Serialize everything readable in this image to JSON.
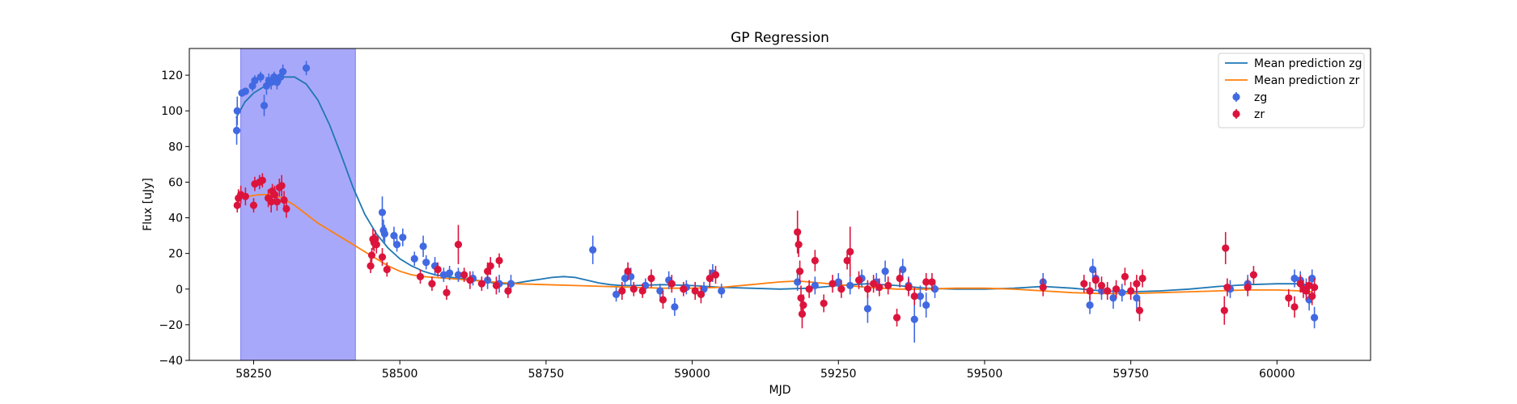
{
  "chart_data": {
    "type": "scatter",
    "title": "GP Regression",
    "xlabel": "MJD",
    "ylabel": "Flux [uJy]",
    "xlim": [
      58140,
      60160
    ],
    "ylim": [
      -40,
      135
    ],
    "xticks": [
      58250,
      58500,
      58750,
      59000,
      59250,
      59500,
      59750,
      60000
    ],
    "yticks": [
      -40,
      -20,
      0,
      20,
      40,
      60,
      80,
      100,
      120
    ],
    "legend_position": "top-right",
    "shaded_region": {
      "x": [
        58228,
        58424
      ],
      "color": "#a8a8fa"
    },
    "series": [
      {
        "name": "Mean prediction zg",
        "kind": "line",
        "color": "#1f77b4",
        "x": [
          58220,
          58235,
          58250,
          58265,
          58280,
          58300,
          58320,
          58340,
          58360,
          58380,
          58400,
          58420,
          58440,
          58460,
          58480,
          58500,
          58520,
          58540,
          58560,
          58580,
          58600,
          58620,
          58640,
          58660,
          58680,
          58700,
          58720,
          58740,
          58760,
          58780,
          58800,
          58820,
          58840,
          58860,
          58880,
          58900,
          58950,
          59000,
          59050,
          59100,
          59150,
          59200,
          59250,
          59300,
          59350,
          59400,
          59450,
          59500,
          59550,
          59600,
          59650,
          59700,
          59750,
          59800,
          59850,
          59900,
          59950,
          60000,
          60040,
          60060
        ],
        "y": [
          96,
          105,
          110,
          113,
          116,
          119,
          119,
          115,
          106,
          92,
          75,
          57,
          42,
          31,
          23,
          17,
          13,
          10,
          8,
          7,
          6,
          5.5,
          4.5,
          3.5,
          3,
          3.5,
          4.5,
          5.5,
          6.5,
          7,
          6.5,
          5,
          3.5,
          2.5,
          2,
          2,
          2.5,
          2,
          1,
          0.5,
          0,
          0.5,
          2,
          3,
          2,
          0.5,
          0,
          0,
          0.5,
          1.5,
          0.5,
          -1,
          -1.5,
          -1,
          0,
          1.5,
          2.5,
          3,
          3,
          2
        ]
      },
      {
        "name": "Mean prediction zr",
        "kind": "line",
        "color": "#ff7f0e",
        "x": [
          58220,
          58240,
          58260,
          58280,
          58300,
          58320,
          58340,
          58360,
          58380,
          58400,
          58420,
          58440,
          58460,
          58480,
          58500,
          58520,
          58540,
          58560,
          58580,
          58600,
          58620,
          58640,
          58660,
          58680,
          58700,
          58750,
          58800,
          58850,
          58900,
          58950,
          59000,
          59050,
          59100,
          59150,
          59180,
          59200,
          59250,
          59300,
          59350,
          59400,
          59450,
          59500,
          59550,
          59600,
          59650,
          59700,
          59750,
          59800,
          59850,
          59900,
          59950,
          60000,
          60040,
          60060
        ],
        "y": [
          51,
          52,
          53,
          53,
          51,
          47,
          42,
          37,
          33,
          29,
          25,
          21,
          17,
          13,
          10,
          8,
          7,
          6.5,
          6,
          5.5,
          5,
          4.5,
          4,
          3.5,
          3,
          2.5,
          2,
          1.5,
          1,
          0.5,
          0.5,
          1,
          2.5,
          4,
          4.5,
          4,
          2.5,
          1,
          0,
          0,
          0.5,
          0.5,
          0,
          -1,
          -2,
          -2.5,
          -2.5,
          -2,
          -1.5,
          -1,
          -0.5,
          -0.5,
          -1,
          -1.5
        ]
      },
      {
        "name": "zg",
        "kind": "errorbar",
        "color": "#4169e1",
        "points": [
          [
            58221,
            89,
            8
          ],
          [
            58222,
            100,
            8
          ],
          [
            58230,
            110,
            2
          ],
          [
            58236,
            111,
            2
          ],
          [
            58248,
            114,
            3
          ],
          [
            58252,
            117,
            3
          ],
          [
            58262,
            119,
            3
          ],
          [
            58268,
            103,
            6
          ],
          [
            58272,
            114,
            5
          ],
          [
            58276,
            117,
            4
          ],
          [
            58280,
            116,
            4
          ],
          [
            58285,
            119,
            3
          ],
          [
            58290,
            116,
            4
          ],
          [
            58296,
            119,
            3
          ],
          [
            58300,
            122,
            4
          ],
          [
            58340,
            124,
            4
          ],
          [
            58470,
            43,
            9
          ],
          [
            58472,
            33,
            6
          ],
          [
            58474,
            31,
            5
          ],
          [
            58490,
            30,
            5
          ],
          [
            58495,
            25,
            4
          ],
          [
            58505,
            29,
            5
          ],
          [
            58525,
            17,
            4
          ],
          [
            58540,
            24,
            6
          ],
          [
            58545,
            15,
            4
          ],
          [
            58560,
            13,
            5
          ],
          [
            58575,
            8,
            4
          ],
          [
            58585,
            9,
            4
          ],
          [
            58600,
            8,
            4
          ],
          [
            58625,
            6,
            4
          ],
          [
            58650,
            5,
            5
          ],
          [
            58670,
            3,
            5
          ],
          [
            58690,
            3,
            5
          ],
          [
            58830,
            22,
            8
          ],
          [
            58870,
            -3,
            4
          ],
          [
            58885,
            6,
            4
          ],
          [
            58895,
            7,
            5
          ],
          [
            58920,
            2,
            4
          ],
          [
            58945,
            -1,
            4
          ],
          [
            58960,
            5,
            5
          ],
          [
            58970,
            -10,
            5
          ],
          [
            58990,
            1,
            4
          ],
          [
            59020,
            0,
            4
          ],
          [
            59035,
            9,
            5
          ],
          [
            59050,
            -1,
            4
          ],
          [
            59180,
            4,
            5
          ],
          [
            59210,
            2,
            5
          ],
          [
            59250,
            4,
            5
          ],
          [
            59270,
            2,
            5
          ],
          [
            59290,
            6,
            5
          ],
          [
            59300,
            -11,
            8
          ],
          [
            59315,
            4,
            5
          ],
          [
            59330,
            10,
            6
          ],
          [
            59360,
            11,
            6
          ],
          [
            59370,
            2,
            5
          ],
          [
            59380,
            -17,
            13
          ],
          [
            59390,
            -4,
            6
          ],
          [
            59400,
            -9,
            7
          ],
          [
            59415,
            0,
            5
          ],
          [
            59600,
            4,
            5
          ],
          [
            59680,
            -9,
            5
          ],
          [
            59685,
            11,
            6
          ],
          [
            59690,
            6,
            5
          ],
          [
            59700,
            -1,
            5
          ],
          [
            59720,
            -5,
            6
          ],
          [
            59735,
            -2,
            5
          ],
          [
            59760,
            -5,
            6
          ],
          [
            59920,
            0,
            5
          ],
          [
            59950,
            3,
            5
          ],
          [
            60030,
            6,
            5
          ],
          [
            60040,
            5,
            5
          ],
          [
            60050,
            1,
            5
          ],
          [
            60055,
            -6,
            6
          ],
          [
            60060,
            6,
            5
          ],
          [
            60064,
            -16,
            6
          ]
        ]
      },
      {
        "name": "zr",
        "kind": "errorbar",
        "color": "#dc143c",
        "points": [
          [
            58222,
            47,
            4
          ],
          [
            58224,
            51,
            5
          ],
          [
            58228,
            53,
            5
          ],
          [
            58236,
            52,
            5
          ],
          [
            58250,
            47,
            4
          ],
          [
            58252,
            59,
            4
          ],
          [
            58260,
            60,
            4
          ],
          [
            58265,
            61,
            4
          ],
          [
            58275,
            51,
            5
          ],
          [
            58280,
            49,
            6
          ],
          [
            58282,
            55,
            4
          ],
          [
            58286,
            53,
            5
          ],
          [
            58290,
            49,
            5
          ],
          [
            58294,
            57,
            5
          ],
          [
            58298,
            58,
            6
          ],
          [
            58302,
            50,
            5
          ],
          [
            58306,
            45,
            5
          ],
          [
            58450,
            13,
            4
          ],
          [
            58452,
            19,
            4
          ],
          [
            58454,
            28,
            6
          ],
          [
            58456,
            26,
            5
          ],
          [
            58458,
            28,
            5
          ],
          [
            58460,
            25,
            5
          ],
          [
            58470,
            18,
            5
          ],
          [
            58478,
            11,
            4
          ],
          [
            58535,
            7,
            4
          ],
          [
            58555,
            3,
            4
          ],
          [
            58565,
            11,
            4
          ],
          [
            58580,
            -2,
            4
          ],
          [
            58600,
            25,
            11
          ],
          [
            58610,
            8,
            4
          ],
          [
            58620,
            5,
            5
          ],
          [
            58640,
            3,
            4
          ],
          [
            58650,
            10,
            5
          ],
          [
            58655,
            13,
            5
          ],
          [
            58665,
            2,
            5
          ],
          [
            58670,
            16,
            4
          ],
          [
            58685,
            -1,
            4
          ],
          [
            58880,
            -1,
            5
          ],
          [
            58890,
            10,
            5
          ],
          [
            58900,
            0,
            4
          ],
          [
            58915,
            -1,
            4
          ],
          [
            58930,
            6,
            5
          ],
          [
            58950,
            -6,
            5
          ],
          [
            58965,
            3,
            5
          ],
          [
            58985,
            0,
            4
          ],
          [
            59005,
            -1,
            5
          ],
          [
            59015,
            -3,
            5
          ],
          [
            59030,
            6,
            5
          ],
          [
            59040,
            8,
            5
          ],
          [
            59180,
            32,
            12
          ],
          [
            59182,
            25,
            7
          ],
          [
            59184,
            10,
            6
          ],
          [
            59186,
            -5,
            7
          ],
          [
            59188,
            -14,
            8
          ],
          [
            59190,
            -9,
            6
          ],
          [
            59200,
            0,
            5
          ],
          [
            59210,
            16,
            6
          ],
          [
            59225,
            -8,
            5
          ],
          [
            59240,
            3,
            5
          ],
          [
            59255,
            0,
            5
          ],
          [
            59265,
            16,
            5
          ],
          [
            59270,
            21,
            14
          ],
          [
            59285,
            5,
            5
          ],
          [
            59300,
            0,
            5
          ],
          [
            59310,
            3,
            5
          ],
          [
            59320,
            1,
            5
          ],
          [
            59335,
            2,
            5
          ],
          [
            59350,
            -16,
            5
          ],
          [
            59355,
            6,
            5
          ],
          [
            59370,
            1,
            5
          ],
          [
            59380,
            -4,
            5
          ],
          [
            59400,
            4,
            5
          ],
          [
            59410,
            4,
            5
          ],
          [
            59600,
            1,
            5
          ],
          [
            59670,
            3,
            5
          ],
          [
            59680,
            -1,
            5
          ],
          [
            59690,
            5,
            5
          ],
          [
            59700,
            2,
            5
          ],
          [
            59710,
            -1,
            5
          ],
          [
            59725,
            0,
            5
          ],
          [
            59740,
            7,
            5
          ],
          [
            59750,
            -1,
            5
          ],
          [
            59760,
            3,
            5
          ],
          [
            59765,
            -12,
            6
          ],
          [
            59770,
            6,
            5
          ],
          [
            59910,
            -12,
            8
          ],
          [
            59912,
            23,
            9
          ],
          [
            59915,
            1,
            5
          ],
          [
            59950,
            1,
            5
          ],
          [
            59960,
            8,
            5
          ],
          [
            60020,
            -5,
            5
          ],
          [
            60030,
            -10,
            6
          ],
          [
            60040,
            3,
            5
          ],
          [
            60045,
            0,
            5
          ],
          [
            60050,
            -1,
            5
          ],
          [
            60055,
            2,
            5
          ],
          [
            60060,
            -4,
            5
          ],
          [
            60064,
            1,
            5
          ]
        ]
      }
    ]
  }
}
